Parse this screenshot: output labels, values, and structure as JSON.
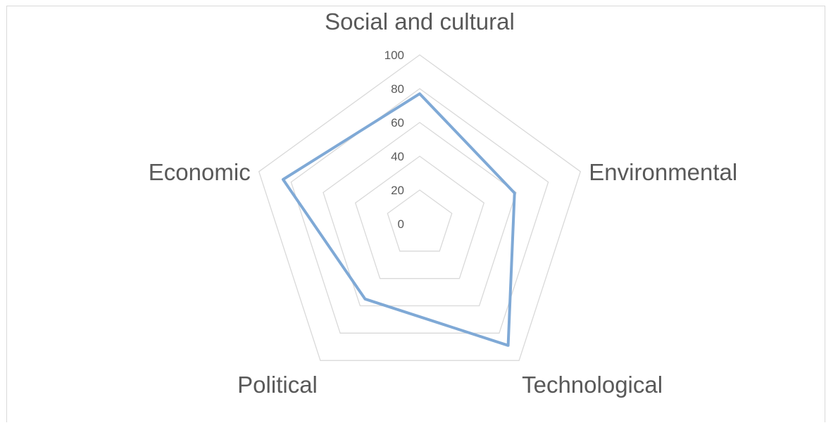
{
  "chart_data": {
    "type": "radar",
    "categories": [
      "Social and cultural",
      "Environmental",
      "Technological",
      "Political",
      "Economic"
    ],
    "series": [
      {
        "values": [
          77,
          59,
          89,
          55,
          85
        ],
        "color": "#7fa9d6"
      }
    ],
    "rlim": [
      0,
      100
    ],
    "ticks": [
      0,
      20,
      40,
      60,
      80,
      100
    ],
    "tick_labels": [
      "0",
      "20",
      "40",
      "60",
      "80",
      "100"
    ],
    "grid": true,
    "grid_color": "#d9d9d9",
    "legend": "none"
  }
}
